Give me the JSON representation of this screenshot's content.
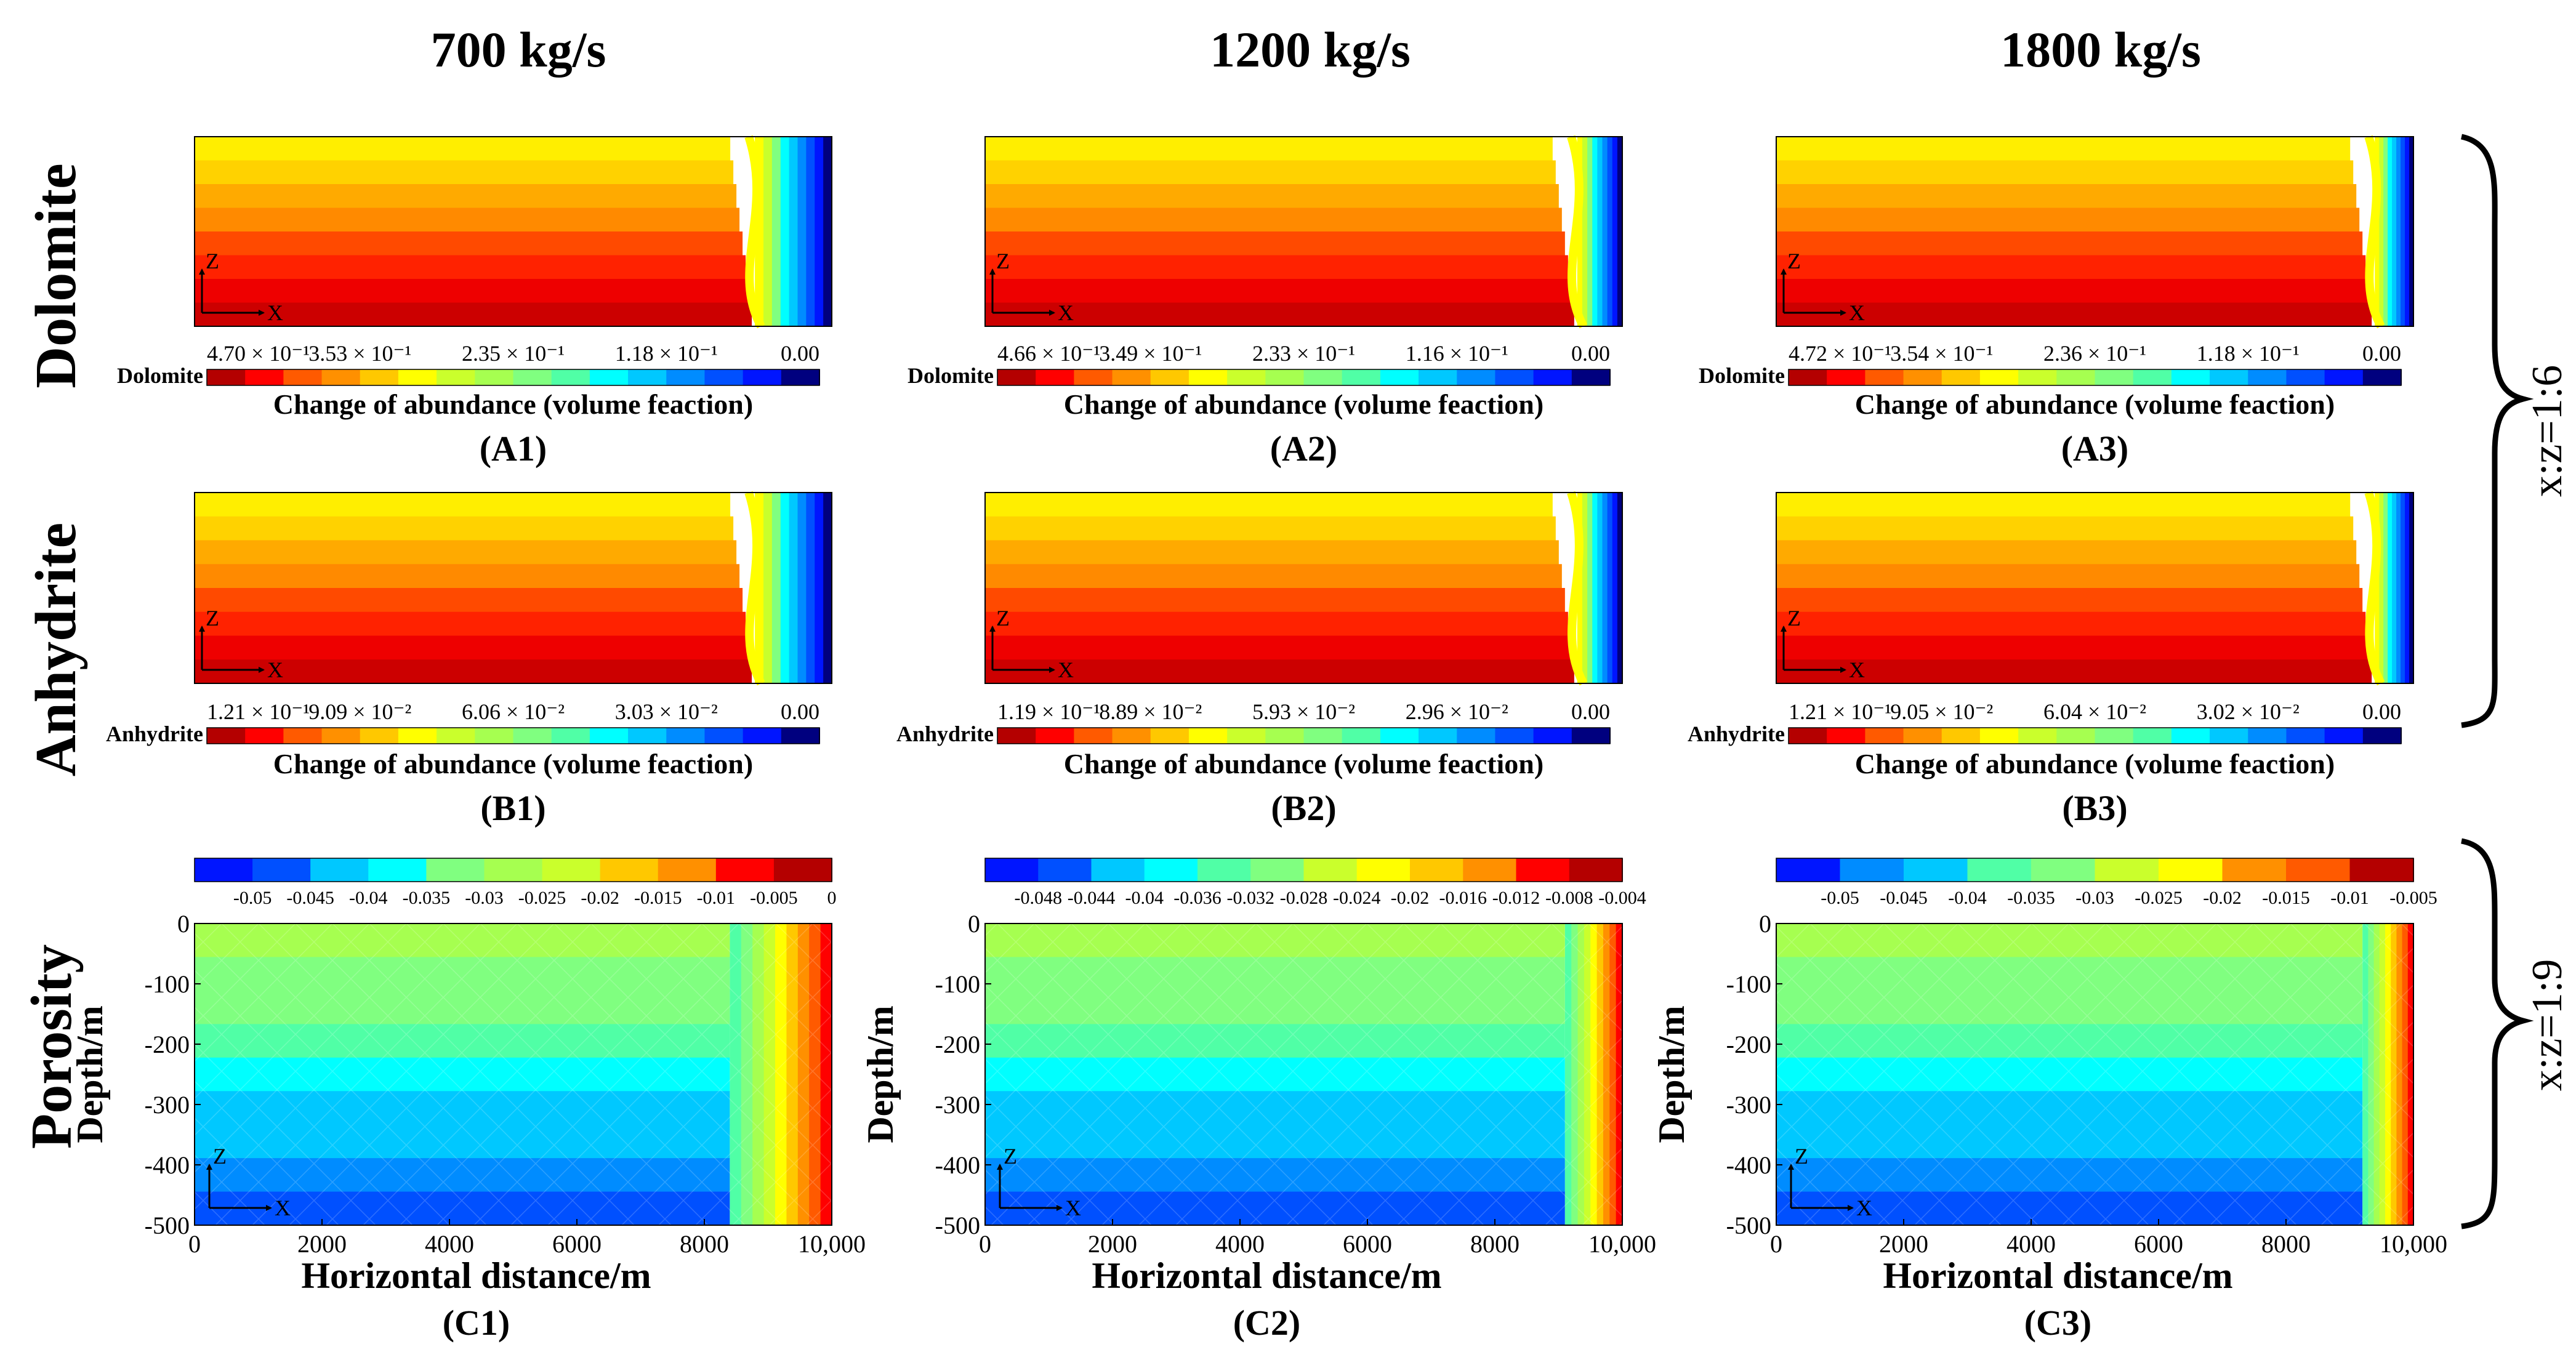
{
  "figure": {
    "columns": [
      "700 kg/s",
      "1200 kg/s",
      "1800 kg/s"
    ],
    "rows": [
      "Dolomite",
      "Anhydrite",
      "Porosity"
    ],
    "ratios": [
      "x:z=1:6",
      "x:z=1:9"
    ]
  },
  "palette": {
    "jet16": [
      "#00007f",
      "#0015ff",
      "#0050ff",
      "#008cff",
      "#00c8ff",
      "#0ff",
      "#50ffa6",
      "#80ff80",
      "#a6ff50",
      "#caff2c",
      "#ffff00",
      "#ffc800",
      "#ff9000",
      "#ff5a00",
      "#ff0000",
      "#b40000"
    ],
    "background": "#ffffff",
    "text": "#000000"
  },
  "chart_data": [
    {
      "id": "A1",
      "type": "heatmap",
      "variable": "Dolomite",
      "panel_label": "(A1)",
      "colorbar_title": "Change of abundance (volume feaction)",
      "colorbar_name": "Dolomite",
      "ticks": [
        "4.70 × 10⁻¹",
        "3.53 × 10⁻¹",
        "2.35 × 10⁻¹",
        "1.18 × 10⁻¹",
        "0.00"
      ],
      "range": [
        0,
        0.47
      ],
      "front_fraction": 0.86,
      "axes_labels": [
        "Z",
        "X"
      ]
    },
    {
      "id": "A2",
      "type": "heatmap",
      "variable": "Dolomite",
      "panel_label": "(A2)",
      "colorbar_title": "Change of abundance (volume feaction)",
      "colorbar_name": "Dolomite",
      "ticks": [
        "4.66 × 10⁻¹",
        "3.49 × 10⁻¹",
        "2.33 × 10⁻¹",
        "1.16 × 10⁻¹",
        "0.00"
      ],
      "range": [
        0,
        0.466
      ],
      "front_fraction": 0.91,
      "axes_labels": [
        "Z",
        "X"
      ]
    },
    {
      "id": "A3",
      "type": "heatmap",
      "variable": "Dolomite",
      "panel_label": "(A3)",
      "colorbar_title": "Change of abundance (volume feaction)",
      "colorbar_name": "Dolomite",
      "ticks": [
        "4.72 × 10⁻¹",
        "3.54 × 10⁻¹",
        "2.36 × 10⁻¹",
        "1.18 × 10⁻¹",
        "0.00"
      ],
      "range": [
        0,
        0.472
      ],
      "front_fraction": 0.92,
      "axes_labels": [
        "Z",
        "X"
      ]
    },
    {
      "id": "B1",
      "type": "heatmap",
      "variable": "Anhydrite",
      "panel_label": "(B1)",
      "colorbar_title": "Change of abundance (volume feaction)",
      "colorbar_name": "Anhydrite",
      "ticks": [
        "1.21 × 10⁻¹",
        "9.09 × 10⁻²",
        "6.06 × 10⁻²",
        "3.03 × 10⁻²",
        "0.00"
      ],
      "range": [
        0,
        0.121
      ],
      "front_fraction": 0.86,
      "axes_labels": [
        "Z",
        "X"
      ]
    },
    {
      "id": "B2",
      "type": "heatmap",
      "variable": "Anhydrite",
      "panel_label": "(B2)",
      "colorbar_title": "Change of abundance (volume feaction)",
      "colorbar_name": "Anhydrite",
      "ticks": [
        "1.19 × 10⁻¹",
        "8.89 × 10⁻²",
        "5.93 × 10⁻²",
        "2.96 × 10⁻²",
        "0.00"
      ],
      "range": [
        0,
        0.119
      ],
      "front_fraction": 0.91,
      "axes_labels": [
        "Z",
        "X"
      ]
    },
    {
      "id": "B3",
      "type": "heatmap",
      "variable": "Anhydrite",
      "panel_label": "(B3)",
      "colorbar_title": "Change of abundance (volume feaction)",
      "colorbar_name": "Anhydrite",
      "ticks": [
        "1.21 × 10⁻¹",
        "9.05 × 10⁻²",
        "6.04 × 10⁻²",
        "3.02 × 10⁻²",
        "0.00"
      ],
      "range": [
        0,
        0.121
      ],
      "front_fraction": 0.92,
      "axes_labels": [
        "Z",
        "X"
      ]
    },
    {
      "id": "C1",
      "type": "heatmap",
      "variable": "Porosity",
      "panel_label": "(C1)",
      "xlabel": "Horizontal distance/m",
      "ylabel": "Depth/m",
      "xlim": [
        0,
        10000
      ],
      "ylim": [
        -500,
        0
      ],
      "xticks": [
        "0",
        "2000",
        "4000",
        "6000",
        "8000",
        "10,000"
      ],
      "yticks": [
        "0",
        "-100",
        "-200",
        "-300",
        "-400",
        "-500"
      ],
      "colorbar_ticks": [
        "-0.05",
        "-0.045",
        "-0.04",
        "-0.035",
        "-0.03",
        "-0.025",
        "-0.02",
        "-0.015",
        "-0.01",
        "-0.005",
        "0"
      ],
      "range": [
        -0.05,
        0.0
      ],
      "front_fraction": 0.84,
      "axes_labels": [
        "Z",
        "X"
      ]
    },
    {
      "id": "C2",
      "type": "heatmap",
      "variable": "Porosity",
      "panel_label": "(C2)",
      "xlabel": "Horizontal distance/m",
      "ylabel": "Depth/m",
      "xlim": [
        0,
        10000
      ],
      "ylim": [
        -500,
        0
      ],
      "xticks": [
        "0",
        "2000",
        "4000",
        "6000",
        "8000",
        "10,000"
      ],
      "yticks": [
        "0",
        "-100",
        "-200",
        "-300",
        "-400",
        "-500"
      ],
      "colorbar_ticks": [
        "-0.048",
        "-0.044",
        "-0.04",
        "-0.036",
        "-0.032",
        "-0.028",
        "-0.024",
        "-0.02",
        "-0.016",
        "-0.012",
        "-0.008",
        "-0.004"
      ],
      "range": [
        -0.048,
        -0.004
      ],
      "front_fraction": 0.91,
      "axes_labels": [
        "Z",
        "X"
      ]
    },
    {
      "id": "C3",
      "type": "heatmap",
      "variable": "Porosity",
      "panel_label": "(C3)",
      "xlabel": "Horizontal distance/m",
      "ylabel": "Depth/m",
      "xlim": [
        0,
        10000
      ],
      "ylim": [
        -500,
        0
      ],
      "xticks": [
        "0",
        "2000",
        "4000",
        "6000",
        "8000",
        "10,000"
      ],
      "yticks": [
        "0",
        "-100",
        "-200",
        "-300",
        "-400",
        "-500"
      ],
      "colorbar_ticks": [
        "-0.05",
        "-0.045",
        "-0.04",
        "-0.035",
        "-0.03",
        "-0.025",
        "-0.02",
        "-0.015",
        "-0.01",
        "-0.005"
      ],
      "range": [
        -0.05,
        -0.005
      ],
      "front_fraction": 0.92,
      "axes_labels": [
        "Z",
        "X"
      ]
    }
  ]
}
